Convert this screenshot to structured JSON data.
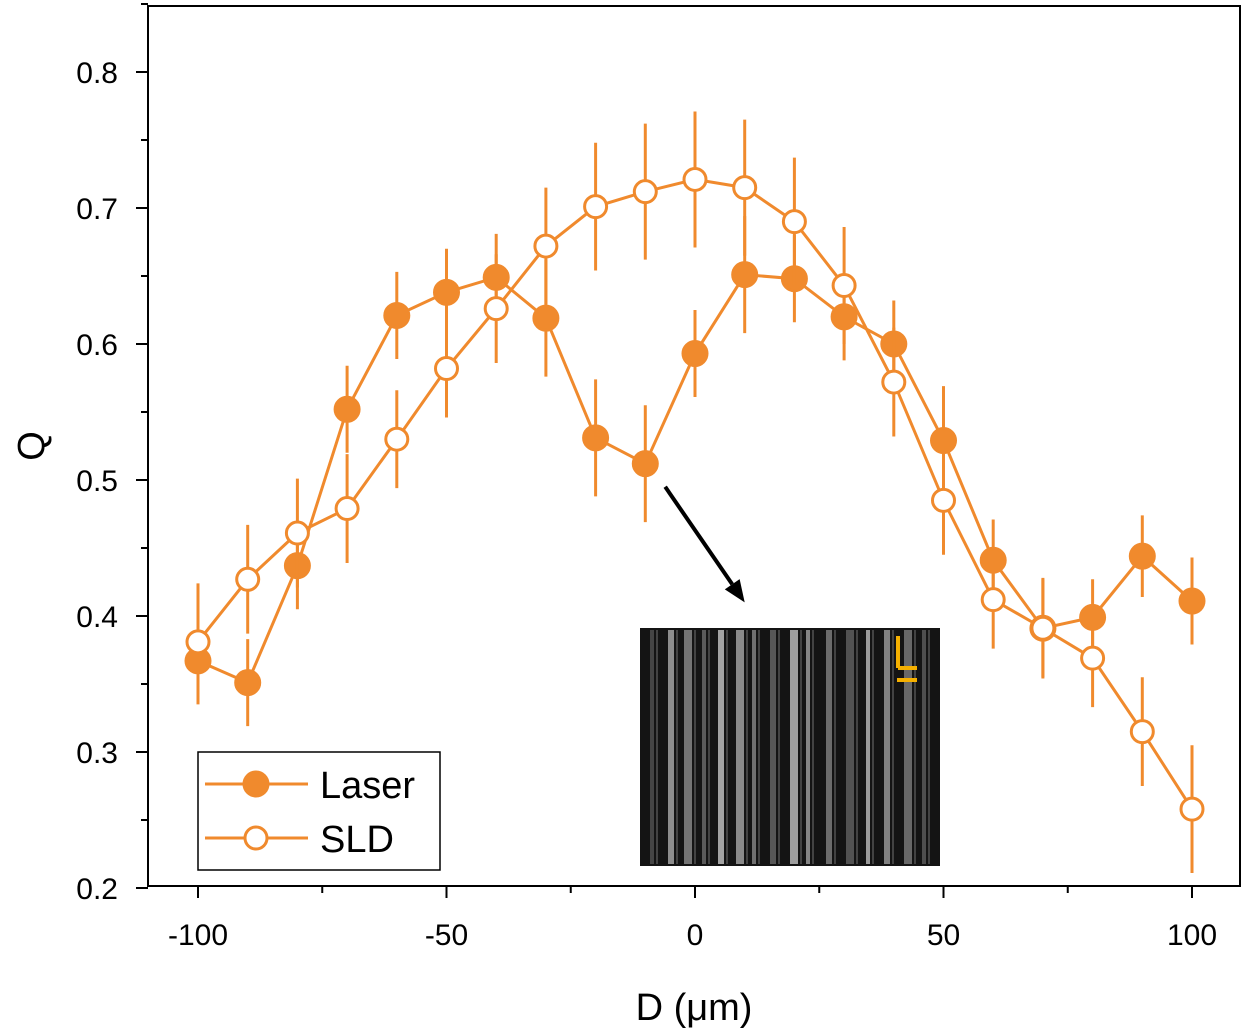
{
  "chart_data": {
    "type": "line",
    "xlabel": "D (μm)",
    "ylabel": "Q",
    "xlim": [
      -110,
      110
    ],
    "ylim": [
      0.2,
      0.85
    ],
    "x_ticks": [
      "-100",
      "-50",
      "0",
      "50",
      "100"
    ],
    "y_ticks": [
      "0.2",
      "0.3",
      "0.4",
      "0.5",
      "0.6",
      "0.7",
      "0.8"
    ],
    "grid": false,
    "legend_position": "bottom-left",
    "color": "#F08A2D",
    "series": [
      {
        "name": "Laser",
        "marker": "filled-circle",
        "x": [
          -100,
          -90,
          -80,
          -70,
          -60,
          -50,
          -40,
          -30,
          -20,
          -10,
          0,
          10,
          20,
          30,
          40,
          50,
          60,
          70,
          80,
          90,
          100
        ],
        "y": [
          0.367,
          0.351,
          0.437,
          0.552,
          0.621,
          0.638,
          0.649,
          0.619,
          0.531,
          0.512,
          0.593,
          0.651,
          0.648,
          0.62,
          0.6,
          0.529,
          0.441,
          0.391,
          0.399,
          0.444,
          0.411
        ],
        "err": [
          0.032,
          0.032,
          0.032,
          0.032,
          0.032,
          0.032,
          0.032,
          0.043,
          0.043,
          0.043,
          0.032,
          0.043,
          0.032,
          0.032,
          0.032,
          0.04,
          0.03,
          0.037,
          0.028,
          0.03,
          0.032
        ]
      },
      {
        "name": "SLD",
        "marker": "open-circle",
        "x": [
          -100,
          -90,
          -80,
          -70,
          -60,
          -50,
          -40,
          -30,
          -20,
          -10,
          0,
          10,
          20,
          30,
          40,
          50,
          60,
          70,
          80,
          90,
          100
        ],
        "y": [
          0.381,
          0.427,
          0.461,
          0.479,
          0.53,
          0.582,
          0.626,
          0.672,
          0.701,
          0.712,
          0.721,
          0.715,
          0.69,
          0.643,
          0.572,
          0.485,
          0.412,
          0.391,
          0.369,
          0.315,
          0.258
        ],
        "err": [
          0.043,
          0.04,
          0.04,
          0.04,
          0.036,
          0.036,
          0.04,
          0.043,
          0.047,
          0.05,
          0.05,
          0.05,
          0.047,
          0.043,
          0.04,
          0.04,
          0.036,
          0.036,
          0.036,
          0.04,
          0.047
        ]
      }
    ]
  },
  "inset": {
    "arrow_from": {
      "x": -6,
      "y": 0.495
    },
    "arrow_to": {
      "x": 10,
      "y": 0.41
    }
  },
  "colors": {
    "series": "#F08A2D",
    "scale_bar": "#F5B000",
    "arrow": "#000000"
  }
}
